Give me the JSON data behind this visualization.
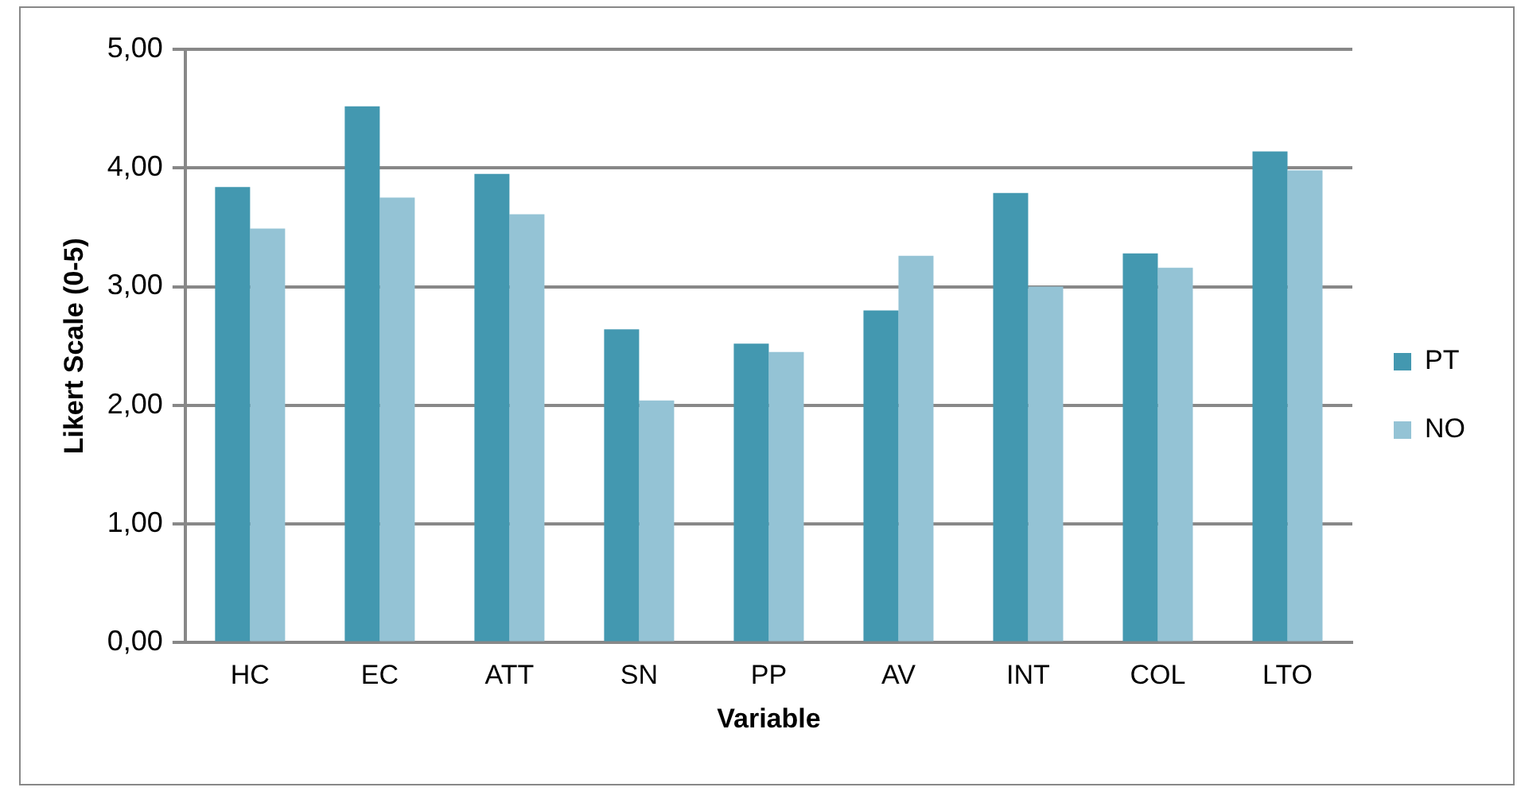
{
  "chart_data": {
    "type": "bar",
    "xlabel": "Variable",
    "ylabel": "Likert Scale (0-5)",
    "categories": [
      "HC",
      "EC",
      "ATT",
      "SN",
      "PP",
      "AV",
      "INT",
      "COL",
      "LTO"
    ],
    "series": [
      {
        "name": "PT",
        "color": "#4398b0",
        "values": [
          3.84,
          4.52,
          3.95,
          2.64,
          2.52,
          2.8,
          3.79,
          3.28,
          4.14
        ]
      },
      {
        "name": "NO",
        "color": "#94c3d5",
        "values": [
          3.49,
          3.75,
          3.61,
          2.04,
          2.45,
          3.26,
          3.0,
          3.16,
          3.98
        ]
      }
    ],
    "ylim": [
      0,
      5
    ],
    "yticks": [
      {
        "value": 0,
        "label": "0,00"
      },
      {
        "value": 1,
        "label": "1,00"
      },
      {
        "value": 2,
        "label": "2,00"
      },
      {
        "value": 3,
        "label": "3,00"
      },
      {
        "value": 4,
        "label": "4,00"
      },
      {
        "value": 5,
        "label": "5,00"
      }
    ],
    "grid": "y",
    "legend": "right"
  }
}
